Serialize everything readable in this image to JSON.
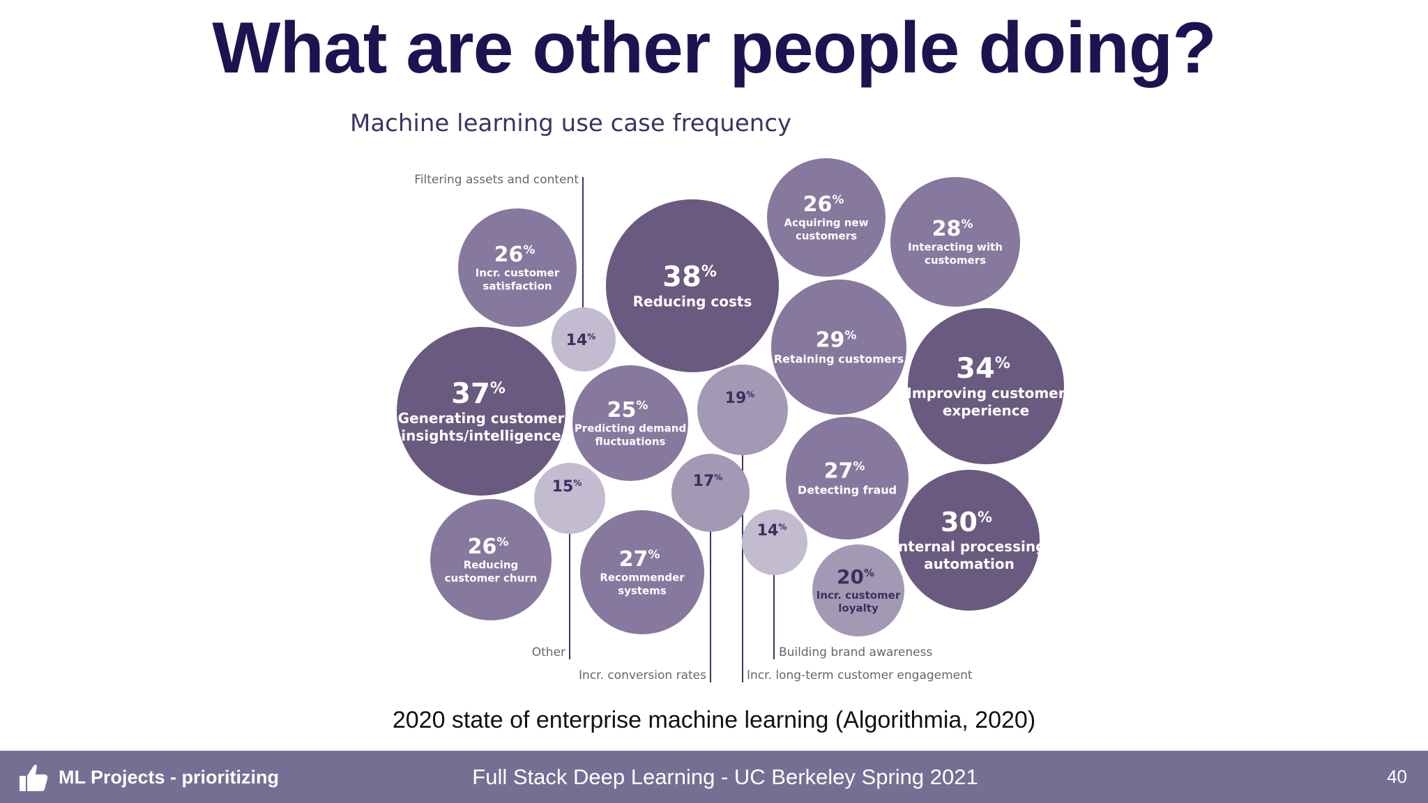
{
  "slide": {
    "title": "What are other people doing?",
    "caption": "2020 state of enterprise machine learning (Algorithmia, 2020)"
  },
  "footer": {
    "section": "ML Projects - prioritizing",
    "course": "Full Stack Deep Learning - UC Berkeley Spring 2021",
    "page": "40",
    "icon": "thumbs-up-icon",
    "background": "#766f94"
  },
  "colors": {
    "title": "#1c1450",
    "bubble_dark": "#6a5a7f",
    "bubble_mid": "#86799d",
    "bubble_light": "#a499b5",
    "bubble_pale": "#c3bbcf",
    "leader": "#3f355e"
  },
  "chart_data": {
    "type": "bubble",
    "title": "Machine learning use case frequency",
    "unit": "%",
    "items": [
      {
        "label": "Reducing costs",
        "value": 38
      },
      {
        "label": "Generating customer insights/intelligence",
        "value": 37
      },
      {
        "label": "Improving customer experience",
        "value": 34
      },
      {
        "label": "Internal processing automation",
        "value": 30
      },
      {
        "label": "Retaining customers",
        "value": 29
      },
      {
        "label": "Interacting with customers",
        "value": 28
      },
      {
        "label": "Detecting fraud",
        "value": 27
      },
      {
        "label": "Recommender systems",
        "value": 27
      },
      {
        "label": "Incr. customer satisfaction",
        "value": 26
      },
      {
        "label": "Acquiring new customers",
        "value": 26
      },
      {
        "label": "Reducing customer churn",
        "value": 26
      },
      {
        "label": "Predicting demand fluctuations",
        "value": 25
      },
      {
        "label": "Incr. customer loyalty",
        "value": 20
      },
      {
        "label": "Incr. long-term customer engagement",
        "value": 19
      },
      {
        "label": "Incr. conversion rates",
        "value": 17
      },
      {
        "label": "Other",
        "value": 15
      },
      {
        "label": "Filtering assets and content",
        "value": 14
      },
      {
        "label": "Building brand awareness",
        "value": 14
      }
    ]
  }
}
